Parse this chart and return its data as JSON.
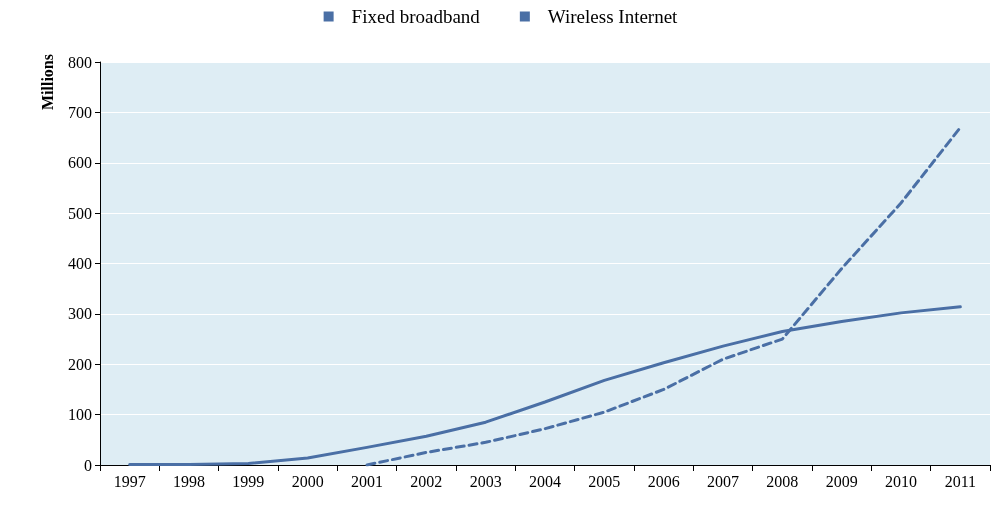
{
  "chart_data": {
    "type": "line",
    "ylabel": "Millions",
    "categories": [
      "1997",
      "1998",
      "1999",
      "2000",
      "2001",
      "2002",
      "2003",
      "2004",
      "2005",
      "2006",
      "2007",
      "2008",
      "2009",
      "2010",
      "2011"
    ],
    "series": [
      {
        "name": "Fixed broadband",
        "color": "#4a6fa5",
        "line_style": "solid",
        "values": [
          1,
          1,
          3,
          14,
          35,
          57,
          85,
          125,
          168,
          203,
          236,
          265,
          285,
          302,
          314
        ]
      },
      {
        "name": "Wireless Internet",
        "color": "#4a6fa5",
        "line_style": "dashed",
        "values": [
          null,
          null,
          null,
          null,
          0,
          25,
          45,
          72,
          105,
          150,
          210,
          250,
          390,
          520,
          670
        ]
      }
    ],
    "ylim": [
      0,
      800
    ],
    "yticks": [
      0,
      100,
      200,
      300,
      400,
      500,
      600,
      700,
      800
    ],
    "grid": "y",
    "legend": "top",
    "marker": "none"
  }
}
